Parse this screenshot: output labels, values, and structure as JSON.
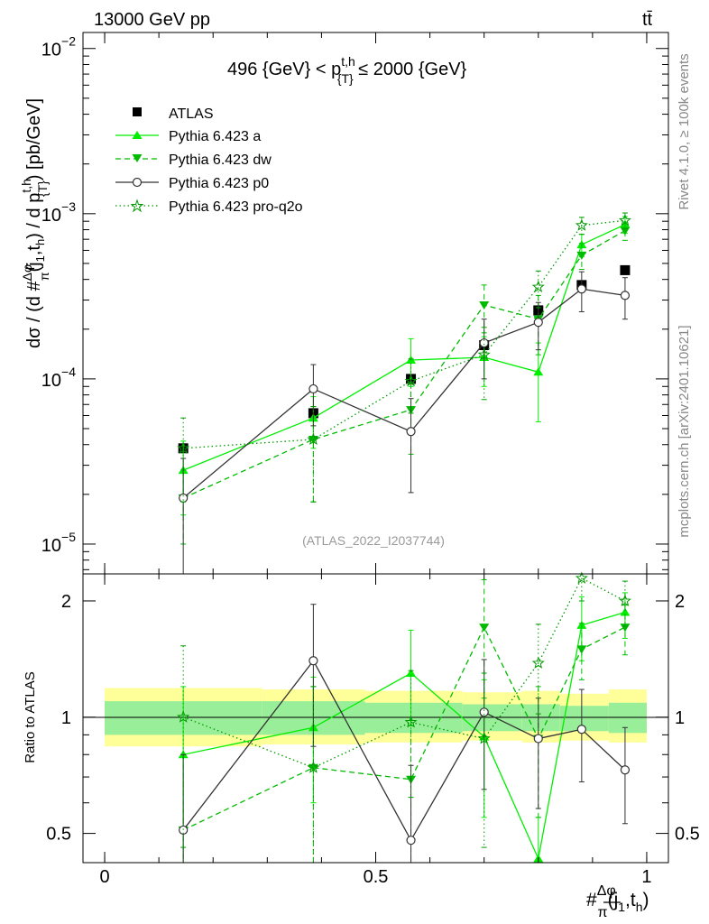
{
  "header": {
    "energy_label": "13000 GeV pp",
    "process_label": "tt̄"
  },
  "side_labels": {
    "rivet": "Rivet 4.1.0, ≥ 100k events",
    "mcplots": "mcplots.cern.ch [arXiv:2401.10621]"
  },
  "colors": {
    "atlas": "#000000",
    "pythia_a": "#00ee00",
    "pythia_dw": "#00bb00",
    "pythia_p0": "#333333",
    "pythia_proq2o": "#009900",
    "band_inner": "#99ee99",
    "band_outer": "#ffff99"
  },
  "chart_data": [
    {
      "type": "line",
      "panel": "main",
      "title": "496 {GeV} < p_{T}^{t,h} ≤ 2000 {GeV}",
      "title_parts": {
        "lead": "496 {GeV} < p",
        "sup": "t,h",
        "sub": "{T}",
        "tail": " ≤ 2000 {GeV}"
      },
      "watermark": "(ATLAS_2022_I2037744)",
      "ylabel": "dσ / (d #Δφ/π(j1,th) / d pT^{t,h}) [pb/GeV]",
      "ylabel_parts": {
        "a": "dσ / (d #",
        "frac_num": "Δφ",
        "frac_den": "π",
        "b": "(j",
        "b_sub": "1",
        "c": ",t",
        "c_sub": "h",
        "d": ") / d p",
        "sup": "t,h",
        "sub": "{T}",
        "e": ") [pb/GeV]"
      },
      "yscale": "log",
      "ylim": [
        6.6e-06,
        0.0125
      ],
      "xlim": [
        -0.04,
        1.04
      ],
      "y_ticks": [
        {
          "value": 1e-05,
          "base": "10",
          "exp": "−5"
        },
        {
          "value": 0.0001,
          "base": "10",
          "exp": "−4"
        },
        {
          "value": 0.001,
          "base": "10",
          "exp": "−3"
        },
        {
          "value": 0.01,
          "base": "10",
          "exp": "−2"
        }
      ],
      "legend_position": "top-left",
      "series": [
        {
          "name": "ATLAS",
          "style": "data",
          "color": "#000000",
          "marker": "square",
          "x": [
            0.145,
            0.385,
            0.565,
            0.7,
            0.8,
            0.88,
            0.96
          ],
          "y": [
            3.8e-05,
            6.2e-05,
            0.0001,
            0.00016,
            0.00026,
            0.00037,
            0.000455
          ],
          "err": [
            0,
            0,
            0,
            0,
            0,
            0,
            0
          ]
        },
        {
          "name": "Pythia 6.423 a",
          "style": "solid",
          "color": "#00ee00",
          "marker": "triangle-up",
          "x": [
            0.145,
            0.385,
            0.565,
            0.7,
            0.8,
            0.88,
            0.96
          ],
          "y": [
            2.8e-05,
            5.8e-05,
            0.00013,
            0.000135,
            0.00011,
            0.00065,
            0.00086
          ],
          "ylow": [
            1.5e-05,
            3.8e-05,
            9e-05,
            9e-05,
            5.5e-05,
            0.00055,
            0.00076
          ],
          "yhigh": [
            4.2e-05,
            7.8e-05,
            0.000175,
            0.00018,
            0.000165,
            0.00075,
            0.00096
          ]
        },
        {
          "name": "Pythia 6.423 dw",
          "style": "dashed",
          "color": "#00bb00",
          "marker": "triangle-down",
          "x": [
            0.145,
            0.385,
            0.565,
            0.7,
            0.8,
            0.88,
            0.96
          ],
          "y": [
            1.9e-05,
            4.3e-05,
            6.5e-05,
            0.00028,
            0.00023,
            0.00056,
            0.00079
          ],
          "ylow": [
            1e-05,
            1.8e-05,
            3.5e-05,
            0.00019,
            0.00014,
            0.00046,
            0.00069
          ],
          "yhigh": [
            2.8e-05,
            6.8e-05,
            9.5e-05,
            0.00037,
            0.00032,
            0.00066,
            0.00089
          ]
        },
        {
          "name": "Pythia 6.423 p0",
          "style": "solid",
          "color": "#333333",
          "marker": "circle-open",
          "x": [
            0.145,
            0.385,
            0.565,
            0.7,
            0.8,
            0.88,
            0.96
          ],
          "y": [
            1.9e-05,
            8.7e-05,
            4.8e-05,
            0.000165,
            0.00022,
            0.00035,
            0.00032
          ],
          "ylow": [
            6.6e-06,
            5.2e-05,
            2.05e-05,
            0.0001,
            0.00015,
            0.000255,
            0.00023
          ],
          "yhigh": [
            3.3e-05,
            0.000122,
            7.6e-05,
            0.00023,
            0.00029,
            0.000445,
            0.00041
          ]
        },
        {
          "name": "Pythia 6.423 pro-q2o",
          "style": "dotted",
          "color": "#009900",
          "marker": "star",
          "x": [
            0.145,
            0.385,
            0.565,
            0.7,
            0.8,
            0.88,
            0.96
          ],
          "y": [
            3.8e-05,
            4.3e-05,
            9.7e-05,
            0.00014,
            0.00036,
            0.00085,
            0.00091
          ],
          "ylow": [
            1.8e-05,
            1.8e-05,
            6.2e-05,
            7.5e-05,
            0.00027,
            0.00075,
            0.00081
          ],
          "yhigh": [
            5.8e-05,
            6.8e-05,
            0.000132,
            0.000205,
            0.00045,
            0.00095,
            0.00101
          ]
        }
      ]
    },
    {
      "type": "line",
      "panel": "ratio",
      "ylabel": "Ratio to ATLAS",
      "xlabel": "#Δφ/π(j1,th)",
      "xlabel_parts": {
        "hash": "#",
        "frac_num": "Δφ",
        "frac_den": "π",
        "a": "(j",
        "a_sub": "1",
        "b": ",t",
        "b_sub": "h",
        "c": ")"
      },
      "yscale": "log",
      "ylim": [
        0.42,
        2.35
      ],
      "xlim": [
        -0.04,
        1.04
      ],
      "x_ticks": [
        {
          "value": 0,
          "label": "0"
        },
        {
          "value": 0.5,
          "label": "0.5"
        },
        {
          "value": 1,
          "label": "1"
        }
      ],
      "y_ticks": [
        {
          "value": 0.5,
          "label": "0.5"
        },
        {
          "value": 1,
          "label": "1"
        },
        {
          "value": 2,
          "label": "2"
        }
      ],
      "reference_line": 1,
      "bands": [
        {
          "x0": 0.0,
          "x1": 0.29,
          "inner": [
            0.9,
            1.1
          ],
          "outer": [
            0.84,
            1.19
          ]
        },
        {
          "x0": 0.29,
          "x1": 0.48,
          "inner": [
            0.9,
            1.1
          ],
          "outer": [
            0.85,
            1.18
          ]
        },
        {
          "x0": 0.48,
          "x1": 0.66,
          "inner": [
            0.91,
            1.09
          ],
          "outer": [
            0.86,
            1.17
          ]
        },
        {
          "x0": 0.66,
          "x1": 0.77,
          "inner": [
            0.92,
            1.08
          ],
          "outer": [
            0.87,
            1.16
          ]
        },
        {
          "x0": 0.77,
          "x1": 0.84,
          "inner": [
            0.92,
            1.08
          ],
          "outer": [
            0.86,
            1.17
          ]
        },
        {
          "x0": 0.84,
          "x1": 0.93,
          "inner": [
            0.92,
            1.07
          ],
          "outer": [
            0.87,
            1.15
          ]
        },
        {
          "x0": 0.93,
          "x1": 1.0,
          "inner": [
            0.91,
            1.09
          ],
          "outer": [
            0.86,
            1.18
          ]
        }
      ],
      "series": [
        {
          "name": "Pythia 6.423 a",
          "style": "solid",
          "color": "#00ee00",
          "marker": "triangle-up",
          "x": [
            0.145,
            0.385,
            0.565,
            0.7,
            0.8,
            0.88,
            0.96
          ],
          "y": [
            0.8,
            0.94,
            1.3,
            0.89,
            0.43,
            1.73,
            1.87
          ],
          "ylow": [
            0.4,
            0.6,
            0.95,
            0.55,
            0.4,
            1.4,
            1.6
          ],
          "yhigh": [
            1.2,
            1.27,
            1.68,
            1.25,
            0.55,
            2.05,
            2.1
          ]
        },
        {
          "name": "Pythia 6.423 dw",
          "style": "dashed",
          "color": "#00bb00",
          "marker": "triangle-down",
          "x": [
            0.145,
            0.385,
            0.565,
            0.7,
            0.8,
            0.88,
            0.96
          ],
          "y": [
            0.51,
            0.74,
            0.69,
            1.71,
            0.88,
            1.5,
            1.71
          ],
          "ylow": [
            0.2,
            0.3,
            0.4,
            1.12,
            0.55,
            1.25,
            1.45
          ],
          "yhigh": [
            0.8,
            1.2,
            0.98,
            2.27,
            1.2,
            1.75,
            1.95
          ]
        },
        {
          "name": "Pythia 6.423 p0",
          "style": "solid",
          "color": "#333333",
          "marker": "circle-open",
          "x": [
            0.145,
            0.385,
            0.565,
            0.7,
            0.8,
            0.88,
            0.96
          ],
          "y": [
            0.51,
            1.4,
            0.48,
            1.03,
            0.88,
            0.93,
            0.73
          ],
          "ylow": [
            0.2,
            0.84,
            0.2,
            0.65,
            0.58,
            0.68,
            0.53
          ],
          "yhigh": [
            0.8,
            1.96,
            0.75,
            1.41,
            1.12,
            1.18,
            0.94
          ]
        },
        {
          "name": "Pythia 6.423 pro-q2o",
          "style": "dotted",
          "color": "#009900",
          "marker": "star",
          "x": [
            0.145,
            0.385,
            0.565,
            0.7,
            0.8,
            0.88,
            0.96
          ],
          "y": [
            1.0,
            0.74,
            0.97,
            0.88,
            1.38,
            2.29,
            2.0
          ],
          "ylow": [
            0.46,
            0.3,
            0.62,
            0.46,
            1.02,
            2.0,
            1.72
          ],
          "yhigh": [
            1.53,
            1.2,
            1.32,
            1.3,
            1.74,
            2.35,
            2.25
          ]
        }
      ]
    }
  ]
}
